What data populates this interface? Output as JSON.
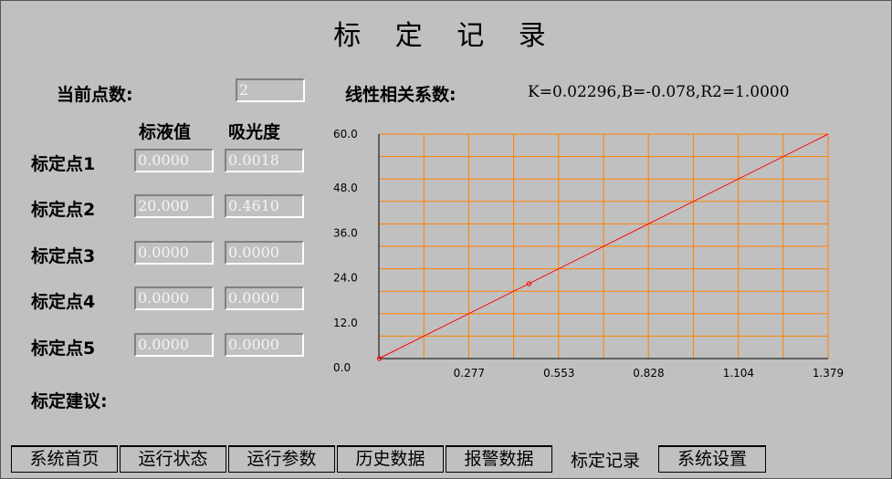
{
  "title": "标 定 记 录",
  "current_points": {
    "label": "当前点数:",
    "value": "2"
  },
  "correlation": {
    "label": "线性相关系数:",
    "value": "K=0.02296,B=-0.078,R2=1.0000"
  },
  "columns": {
    "std_value": "标液值",
    "absorbance": "吸光度"
  },
  "points": [
    {
      "label": "标定点1",
      "std_value": "0.0000",
      "absorbance": "0.0018"
    },
    {
      "label": "标定点2",
      "std_value": "20.000",
      "absorbance": "0.4610"
    },
    {
      "label": "标定点3",
      "std_value": "0.0000",
      "absorbance": "0.0000"
    },
    {
      "label": "标定点4",
      "std_value": "0.0000",
      "absorbance": "0.0000"
    },
    {
      "label": "标定点5",
      "std_value": "0.0000",
      "absorbance": "0.0000"
    }
  ],
  "suggestion_label": "标定建议:",
  "tabs": [
    {
      "label": "系统首页"
    },
    {
      "label": "运行状态"
    },
    {
      "label": "运行参数"
    },
    {
      "label": "历史数据"
    },
    {
      "label": "报警数据"
    },
    {
      "label": "标定记录",
      "active": true
    },
    {
      "label": "系统设置"
    }
  ],
  "chart_data": {
    "type": "line",
    "xlim": [
      0,
      1.379
    ],
    "ylim": [
      0,
      60.0
    ],
    "x_ticks": [
      "0.277",
      "0.553",
      "0.828",
      "1.104",
      "1.379"
    ],
    "y_ticks": [
      "0.0",
      "12.0",
      "24.0",
      "36.0",
      "48.0",
      "60.0"
    ],
    "grid": true,
    "line": {
      "x": [
        0,
        1.379
      ],
      "y": [
        0,
        60.0
      ]
    },
    "points": [
      {
        "x": 0.461,
        "y": 20.0
      },
      {
        "x": 0.0018,
        "y": 0.0
      }
    ],
    "colors": {
      "line": "#ff0000",
      "grid": "#ff8000",
      "background": "#c0c0c0"
    }
  }
}
